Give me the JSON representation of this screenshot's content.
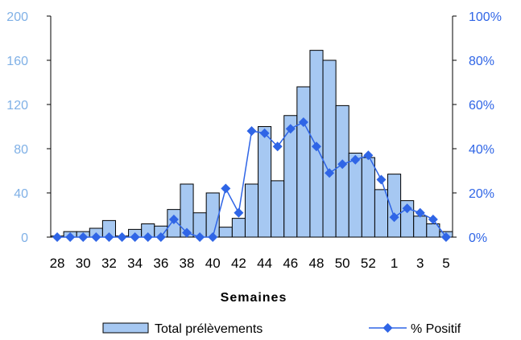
{
  "chart_data": {
    "type": "bar",
    "xlabel": "Semaines",
    "categories": [
      "28",
      "29",
      "30",
      "31",
      "32",
      "33",
      "34",
      "35",
      "36",
      "37",
      "38",
      "39",
      "40",
      "41",
      "42",
      "43",
      "44",
      "45",
      "46",
      "47",
      "48",
      "49",
      "50",
      "51",
      "52",
      "53",
      "1",
      "2",
      "3",
      "4",
      "5"
    ],
    "x_tick_labels": [
      "28",
      "30",
      "32",
      "34",
      "36",
      "38",
      "40",
      "42",
      "44",
      "46",
      "48",
      "50",
      "52",
      "1",
      "3",
      "5"
    ],
    "series": [
      {
        "name": "Total prélèvements",
        "type": "bar",
        "axis": "left",
        "values": [
          1,
          5,
          5,
          8,
          15,
          1,
          7,
          12,
          10,
          25,
          48,
          22,
          40,
          9,
          17,
          48,
          100,
          51,
          110,
          136,
          169,
          160,
          119,
          76,
          72,
          43,
          57,
          33,
          19,
          12,
          5
        ]
      },
      {
        "name": "% Positif",
        "type": "line",
        "axis": "right",
        "values": [
          0,
          0,
          0,
          0,
          0,
          0,
          0,
          0,
          0,
          8,
          2,
          0,
          0,
          22,
          11,
          48,
          47,
          41,
          49,
          52,
          41,
          29,
          33,
          35,
          37,
          26,
          9,
          13,
          11,
          8,
          0
        ]
      }
    ],
    "y_left": {
      "min": 0,
      "max": 200,
      "ticks": [
        "0",
        "40",
        "80",
        "120",
        "160",
        "200"
      ],
      "color": "#7fb0e6"
    },
    "y_right": {
      "min": 0,
      "max": 100,
      "ticks": [
        "0%",
        "20%",
        "40%",
        "60%",
        "80%",
        "100%"
      ],
      "color": "#2f65e6"
    },
    "grid": false,
    "legend": "bottom",
    "colors": {
      "bar_fill": "#a6c8f2",
      "bar_stroke": "#000000",
      "line": "#2f65e6",
      "marker": "#2f65e6"
    }
  }
}
